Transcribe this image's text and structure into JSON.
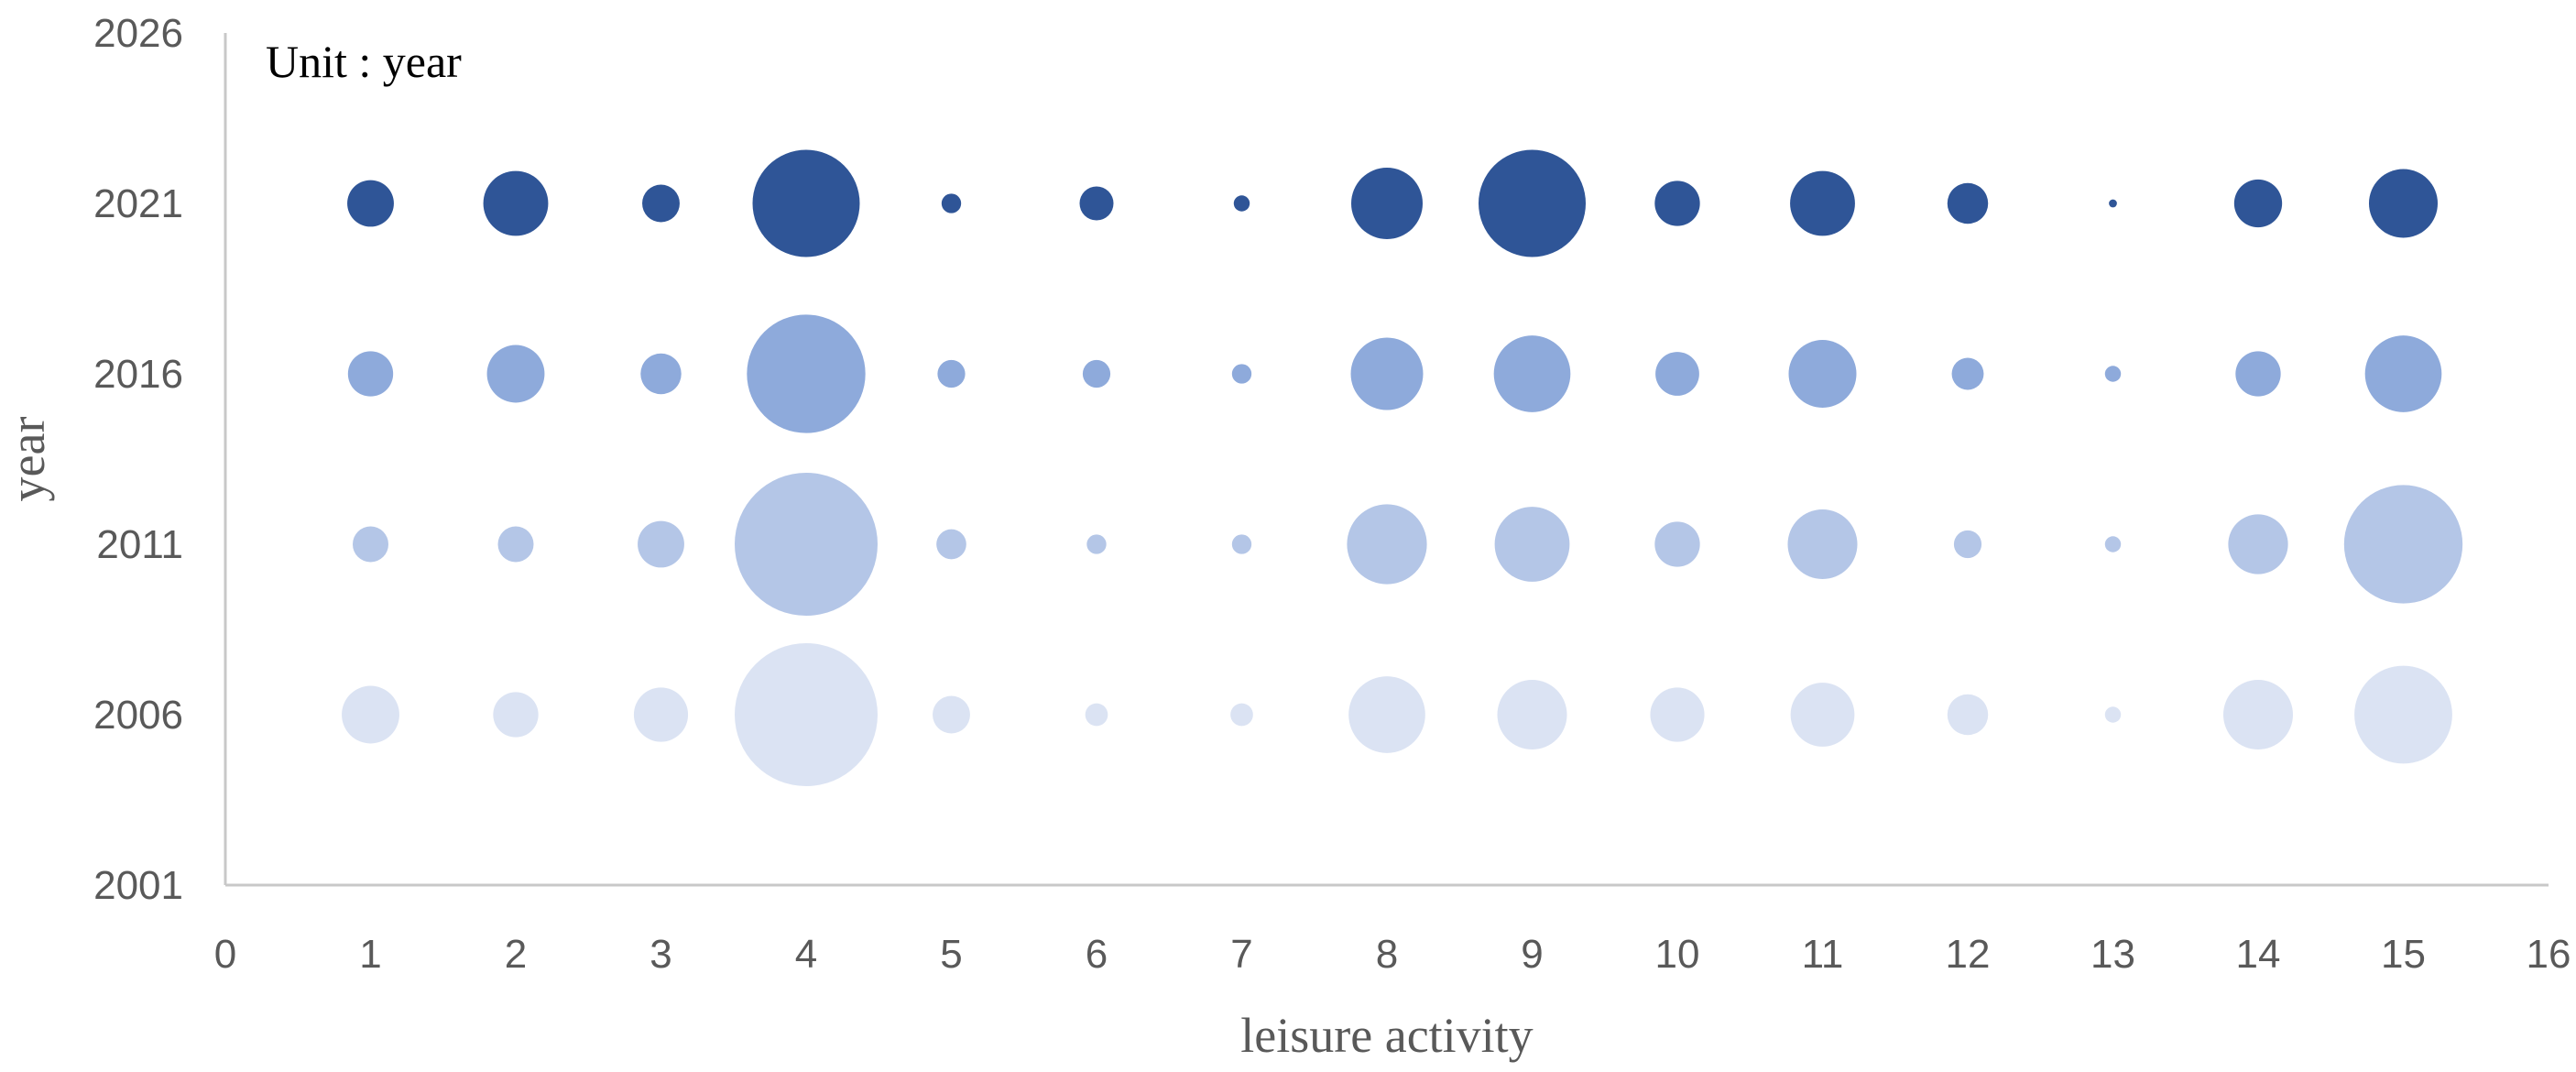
{
  "chart_data": {
    "type": "bubble",
    "annotation": "Unit : year",
    "xlabel": "leisure activity",
    "ylabel": "year",
    "xlim": [
      0,
      16
    ],
    "ylim": [
      2001,
      2026
    ],
    "x_ticks": [
      "0",
      "1",
      "2",
      "3",
      "4",
      "5",
      "6",
      "7",
      "8",
      "9",
      "10",
      "11",
      "12",
      "13",
      "14",
      "15",
      "16"
    ],
    "y_ticks": [
      "2001",
      "2006",
      "2011",
      "2016",
      "2021",
      "2026"
    ],
    "grid": false,
    "legend": "none",
    "x": [
      1,
      2,
      3,
      4,
      5,
      6,
      7,
      8,
      9,
      10,
      11,
      12,
      13,
      14,
      15
    ],
    "series": [
      {
        "year": 2006,
        "color": "#dbe3f3",
        "sizes": [
          2.6,
          1.6,
          2.3,
          16.0,
          1.1,
          0.4,
          0.4,
          4.6,
          3.8,
          2.3,
          3.2,
          1.3,
          0.2,
          3.8,
          7.5
        ]
      },
      {
        "year": 2011,
        "color": "#b4c6e7",
        "sizes": [
          1.0,
          1.0,
          1.7,
          16.0,
          0.7,
          0.3,
          0.3,
          5.0,
          4.4,
          1.6,
          3.8,
          0.6,
          0.2,
          2.8,
          11.0
        ]
      },
      {
        "year": 2016,
        "color": "#8eaadb",
        "sizes": [
          1.6,
          2.6,
          1.3,
          11.0,
          0.6,
          0.6,
          0.3,
          4.1,
          4.6,
          1.5,
          3.6,
          0.8,
          0.2,
          1.6,
          4.6
        ]
      },
      {
        "year": 2021,
        "color": "#2f5597",
        "sizes": [
          1.7,
          3.3,
          1.1,
          9.0,
          0.3,
          0.9,
          0.2,
          4.0,
          9.0,
          1.6,
          3.3,
          1.3,
          0.05,
          1.8,
          3.7
        ]
      }
    ]
  }
}
